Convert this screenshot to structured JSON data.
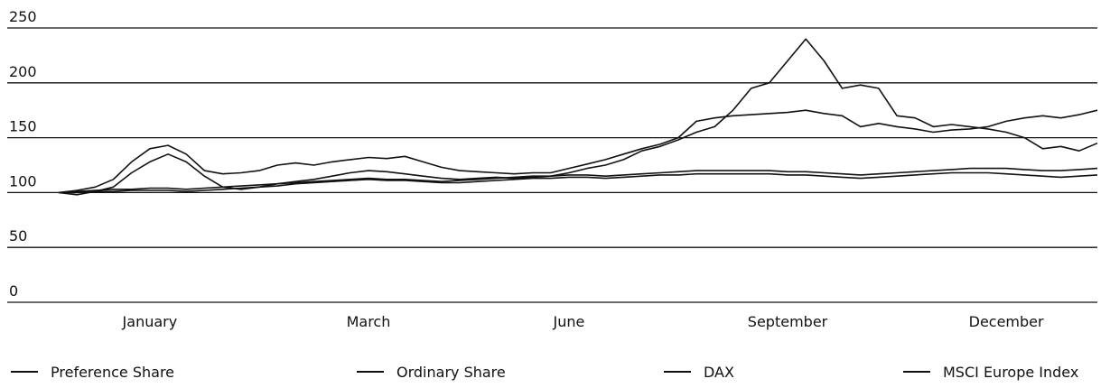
{
  "chart_data": {
    "type": "line",
    "categories": [
      null,
      null,
      null,
      null,
      null,
      "January",
      null,
      null,
      null,
      null,
      null,
      null,
      null,
      null,
      null,
      null,
      null,
      "March",
      null,
      null,
      null,
      null,
      null,
      null,
      null,
      null,
      null,
      null,
      "June",
      null,
      null,
      null,
      null,
      null,
      null,
      null,
      null,
      null,
      null,
      null,
      "September",
      null,
      null,
      null,
      null,
      null,
      null,
      null,
      null,
      null,
      null,
      null,
      "December",
      null,
      null,
      null,
      null,
      null
    ],
    "series": [
      {
        "name": "Preference Share",
        "color": "#111111",
        "values": [
          100,
          102,
          105,
          112,
          128,
          140,
          143,
          135,
          120,
          117,
          118,
          120,
          125,
          127,
          125,
          128,
          130,
          132,
          131,
          133,
          128,
          123,
          120,
          119,
          118,
          117,
          118,
          118,
          122,
          126,
          130,
          135,
          140,
          144,
          150,
          165,
          168,
          170,
          171,
          172,
          173,
          175,
          172,
          170,
          160,
          163,
          160,
          158,
          155,
          157,
          158,
          160,
          165,
          168,
          170,
          168,
          171,
          175
        ]
      },
      {
        "name": "Ordinary Share",
        "color": "#111111",
        "values": [
          100,
          98,
          101,
          105,
          118,
          128,
          135,
          128,
          115,
          105,
          103,
          105,
          108,
          110,
          112,
          115,
          118,
          120,
          119,
          117,
          115,
          113,
          112,
          113,
          114,
          113,
          114,
          115,
          118,
          122,
          125,
          130,
          138,
          142,
          148,
          155,
          160,
          175,
          195,
          200,
          220,
          240,
          220,
          195,
          198,
          195,
          170,
          168,
          160,
          162,
          160,
          158,
          155,
          150,
          140,
          142,
          138,
          145
        ]
      },
      {
        "name": "DAX",
        "color": "#111111",
        "values": [
          100,
          101,
          102,
          103,
          103,
          104,
          104,
          103,
          104,
          105,
          106,
          107,
          108,
          109,
          110,
          111,
          112,
          113,
          112,
          112,
          111,
          110,
          111,
          112,
          113,
          114,
          115,
          115,
          116,
          116,
          115,
          116,
          117,
          118,
          119,
          120,
          120,
          120,
          120,
          120,
          119,
          119,
          118,
          117,
          116,
          117,
          118,
          119,
          120,
          121,
          122,
          122,
          122,
          121,
          120,
          120,
          121,
          122
        ]
      },
      {
        "name": "MSCI Europe Index",
        "color": "#111111",
        "values": [
          100,
          100,
          101,
          101,
          102,
          102,
          102,
          101,
          102,
          103,
          104,
          105,
          106,
          108,
          109,
          110,
          111,
          112,
          111,
          111,
          110,
          109,
          109,
          110,
          111,
          112,
          113,
          113,
          114,
          114,
          113,
          114,
          115,
          116,
          116,
          117,
          117,
          117,
          117,
          117,
          116,
          116,
          115,
          114,
          113,
          114,
          115,
          116,
          117,
          118,
          118,
          118,
          117,
          116,
          115,
          114,
          115,
          116
        ]
      }
    ],
    "ylim": [
      0,
      250
    ],
    "yticks": [
      0,
      50,
      100,
      150,
      200,
      250
    ],
    "grid": true
  }
}
